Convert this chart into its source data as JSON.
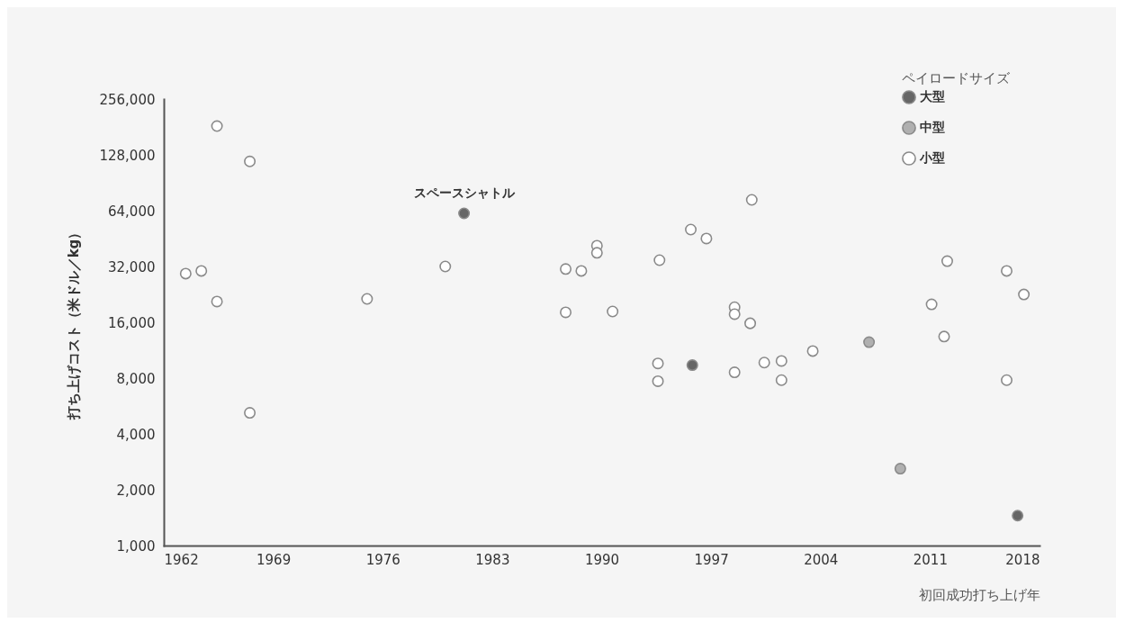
{
  "chart_data": {
    "type": "scatter",
    "xlabel": "初回成功打ち上げ年",
    "ylabel": "打ち上げコスト（米ドル／kg）",
    "legend_title": "ペイロードサイズ",
    "legend": "top right",
    "marker": "circle",
    "log": "y",
    "grid": false,
    "xlim": [
      1962,
      2018
    ],
    "xticks": [
      1962,
      1969,
      1976,
      1983,
      1990,
      1997,
      2004,
      2011,
      2018
    ],
    "ylim": [
      1000,
      256000
    ],
    "yticks": [
      {
        "value": 1000,
        "label": "1,000"
      },
      {
        "value": 2000,
        "label": "2,000"
      },
      {
        "value": 4000,
        "label": "4,000"
      },
      {
        "value": 8000,
        "label": "8,000"
      },
      {
        "value": 16000,
        "label": "16,000"
      },
      {
        "value": 32000,
        "label": "32,000"
      },
      {
        "value": 64000,
        "label": "64,000"
      },
      {
        "value": 128000,
        "label": "128,000"
      },
      {
        "value": 256000,
        "label": "256,000"
      }
    ],
    "series": [
      {
        "name": "大型",
        "color": "#666666",
        "x": [
          1981.2,
          1995.8,
          2016.6
        ],
        "values": [
          61900,
          9400,
          1450
        ]
      },
      {
        "name": "中型",
        "color": "#b0b0b0",
        "x": [
          2007.1,
          2009.1
        ],
        "values": [
          12500,
          2600
        ]
      },
      {
        "name": "小型",
        "color": "#ffffff",
        "x": [
          1963.4,
          1964.4,
          1965.4,
          1965.4,
          1967.5,
          1967.5,
          1975.0,
          1980.0,
          1987.7,
          1988.7,
          1989.7,
          1989.7,
          1987.7,
          1990.7,
          1993.7,
          1995.7,
          1996.7,
          1999.6,
          1993.6,
          1993.6,
          1998.5,
          1998.5,
          1999.5,
          1998.5,
          2000.4,
          2001.5,
          2001.5,
          2003.5,
          2011.1,
          2011.9,
          2012.1,
          2015.9,
          2017.0,
          2015.9
        ],
        "values": [
          29300,
          30300,
          183000,
          20700,
          118000,
          5200,
          21400,
          32000,
          31000,
          30300,
          41400,
          37900,
          18100,
          18300,
          34600,
          50600,
          45300,
          73200,
          9600,
          7700,
          19300,
          17700,
          15800,
          8600,
          9700,
          9900,
          7800,
          11200,
          20000,
          13400,
          34200,
          30300,
          22600,
          7800
        ]
      }
    ],
    "annotations": [
      {
        "text": "スペースシャトル",
        "x": 1981.2,
        "y": 61900
      }
    ]
  }
}
